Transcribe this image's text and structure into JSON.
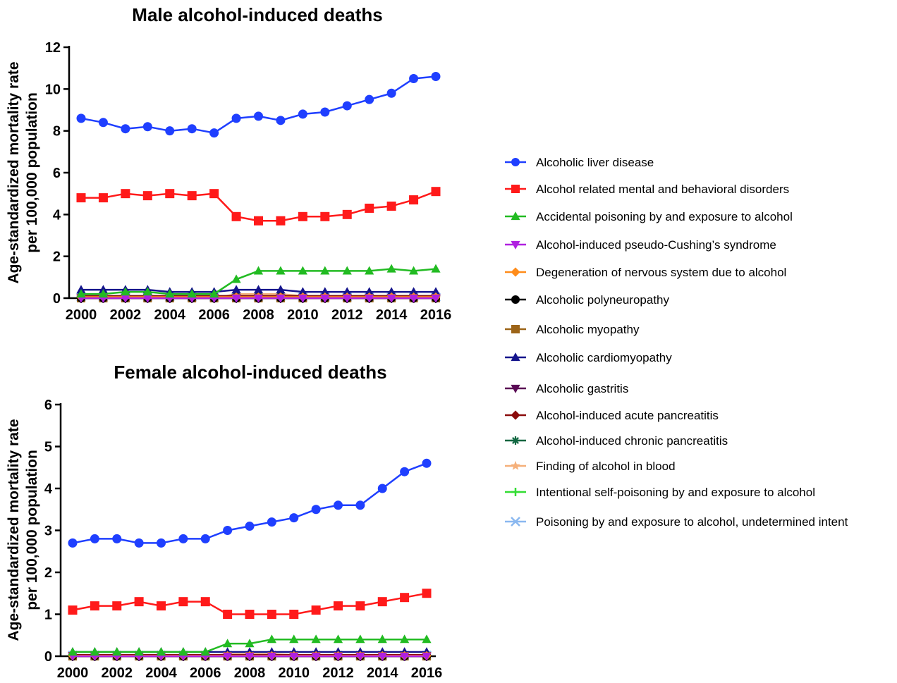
{
  "chart_data": [
    {
      "type": "line",
      "title": "Male alcohol-induced deaths",
      "xlabel": "",
      "ylabel": [
        "Age-standardized mortality rate",
        "per 100,000 population"
      ],
      "ylim": [
        0,
        12
      ],
      "yticks": [
        0,
        2,
        4,
        6,
        8,
        10,
        12
      ],
      "xticks": [
        2000,
        2002,
        2004,
        2006,
        2008,
        2010,
        2012,
        2014,
        2016
      ],
      "x": [
        2000,
        2001,
        2002,
        2003,
        2004,
        2005,
        2006,
        2007,
        2008,
        2009,
        2010,
        2011,
        2012,
        2013,
        2014,
        2015,
        2016
      ],
      "series": [
        {
          "name": "Alcoholic liver disease",
          "values": [
            8.6,
            8.4,
            8.1,
            8.2,
            8.0,
            8.1,
            7.9,
            8.6,
            8.7,
            8.5,
            8.8,
            8.9,
            9.2,
            9.5,
            9.8,
            10.5,
            10.6
          ]
        },
        {
          "name": "Alcohol related mental and behavioral disorders",
          "values": [
            4.8,
            4.8,
            5.0,
            4.9,
            5.0,
            4.9,
            5.0,
            3.9,
            3.7,
            3.7,
            3.9,
            3.9,
            4.0,
            4.3,
            4.4,
            4.7,
            5.1
          ]
        },
        {
          "name": "Accidental poisoning by and exposure to alcohol",
          "values": [
            0.2,
            0.2,
            0.3,
            0.3,
            0.2,
            0.2,
            0.2,
            0.9,
            1.3,
            1.3,
            1.3,
            1.3,
            1.3,
            1.3,
            1.4,
            1.3,
            1.4
          ]
        },
        {
          "name": "Alcohol-induced pseudo-Cushing’s syndrome",
          "values": [
            0,
            0,
            0,
            0,
            0,
            0,
            0,
            0,
            0,
            0,
            0,
            0,
            0,
            0,
            0,
            0,
            0
          ]
        },
        {
          "name": "Degeneration of nervous system due to alcohol",
          "values": [
            0.05,
            0.05,
            0.05,
            0.05,
            0.05,
            0.05,
            0.05,
            0.05,
            0.05,
            0.05,
            0.05,
            0.05,
            0.05,
            0.05,
            0.05,
            0.05,
            0.05
          ]
        },
        {
          "name": "Alcoholic polyneuropathy",
          "values": [
            0,
            0,
            0,
            0,
            0,
            0,
            0,
            0,
            0,
            0,
            0,
            0,
            0,
            0,
            0,
            0,
            0
          ]
        },
        {
          "name": "Alcoholic myopathy",
          "values": [
            0,
            0,
            0,
            0,
            0,
            0,
            0,
            0,
            0,
            0,
            0,
            0,
            0,
            0,
            0,
            0,
            0
          ]
        },
        {
          "name": "Alcoholic cardiomyopathy",
          "values": [
            0.4,
            0.4,
            0.4,
            0.4,
            0.3,
            0.3,
            0.3,
            0.4,
            0.4,
            0.4,
            0.3,
            0.3,
            0.3,
            0.3,
            0.3,
            0.3,
            0.3
          ]
        },
        {
          "name": "Alcoholic gastritis",
          "values": [
            0.02,
            0.02,
            0.02,
            0.02,
            0.02,
            0.02,
            0.02,
            0.02,
            0.02,
            0.02,
            0.02,
            0.02,
            0.02,
            0.02,
            0.02,
            0.02,
            0.02
          ]
        },
        {
          "name": "Alcohol-induced acute pancreatitis",
          "values": [
            0.1,
            0.1,
            0.1,
            0.1,
            0.1,
            0.1,
            0.1,
            0.1,
            0.1,
            0.1,
            0.1,
            0.1,
            0.1,
            0.1,
            0.1,
            0.1,
            0.1
          ]
        },
        {
          "name": "Alcohol-induced chronic pancreatitis",
          "values": [
            0.1,
            0.1,
            0.1,
            0.1,
            0.1,
            0.1,
            0.1,
            0.1,
            0.1,
            0.1,
            0.1,
            0.1,
            0.1,
            0.1,
            0.1,
            0.1,
            0.1
          ]
        },
        {
          "name": "Finding of alcohol in blood",
          "values": [
            0,
            0,
            0,
            0,
            0,
            0,
            0,
            0.2,
            0.2,
            0.2,
            0.1,
            0.1,
            0.1,
            0.1,
            0.1,
            0.1,
            0.1
          ]
        },
        {
          "name": "Intentional self-poisoning by and exposure to alcohol",
          "values": [
            0.02,
            0.02,
            0.02,
            0.02,
            0.02,
            0.02,
            0.02,
            0.02,
            0.02,
            0.02,
            0.02,
            0.02,
            0.02,
            0.02,
            0.02,
            0.02,
            0.02
          ]
        },
        {
          "name": "Poisoning by and exposure to alcohol, undetermined intent",
          "values": [
            0.05,
            0.05,
            0.05,
            0.05,
            0.05,
            0.05,
            0.05,
            0.05,
            0.05,
            0.05,
            0.05,
            0.05,
            0.05,
            0.05,
            0.05,
            0.05,
            0.05
          ]
        }
      ]
    },
    {
      "type": "line",
      "title": "Female alcohol-induced deaths",
      "xlabel": "",
      "ylabel": [
        "Age-standardized mortality rate",
        "per 100,000 population"
      ],
      "ylim": [
        0,
        6
      ],
      "yticks": [
        0,
        1,
        2,
        3,
        4,
        5,
        6
      ],
      "xticks": [
        2000,
        2002,
        2004,
        2006,
        2008,
        2010,
        2012,
        2014,
        2016
      ],
      "x": [
        2000,
        2001,
        2002,
        2003,
        2004,
        2005,
        2006,
        2007,
        2008,
        2009,
        2010,
        2011,
        2012,
        2013,
        2014,
        2015,
        2016
      ],
      "series": [
        {
          "name": "Alcoholic liver disease",
          "values": [
            2.7,
            2.8,
            2.8,
            2.7,
            2.7,
            2.8,
            2.8,
            3.0,
            3.1,
            3.2,
            3.3,
            3.5,
            3.6,
            3.6,
            4.0,
            4.4,
            4.6
          ]
        },
        {
          "name": "Alcohol related mental and behavioral disorders",
          "values": [
            1.1,
            1.2,
            1.2,
            1.3,
            1.2,
            1.3,
            1.3,
            1.0,
            1.0,
            1.0,
            1.0,
            1.1,
            1.2,
            1.2,
            1.3,
            1.4,
            1.5
          ]
        },
        {
          "name": "Accidental poisoning by and exposure to alcohol",
          "values": [
            0.1,
            0.1,
            0.1,
            0.1,
            0.1,
            0.1,
            0.1,
            0.3,
            0.3,
            0.4,
            0.4,
            0.4,
            0.4,
            0.4,
            0.4,
            0.4,
            0.4
          ]
        },
        {
          "name": "Alcohol-induced pseudo-Cushing’s syndrome",
          "values": [
            0,
            0,
            0,
            0,
            0,
            0,
            0,
            0,
            0,
            0,
            0,
            0,
            0,
            0,
            0,
            0,
            0
          ]
        },
        {
          "name": "Degeneration of nervous system due to alcohol",
          "values": [
            0.01,
            0.01,
            0.01,
            0.01,
            0.01,
            0.01,
            0.01,
            0.01,
            0.01,
            0.01,
            0.01,
            0.01,
            0.01,
            0.01,
            0.01,
            0.01,
            0.01
          ]
        },
        {
          "name": "Alcoholic polyneuropathy",
          "values": [
            0,
            0,
            0,
            0,
            0,
            0,
            0,
            0,
            0,
            0,
            0,
            0,
            0,
            0,
            0,
            0,
            0
          ]
        },
        {
          "name": "Alcoholic myopathy",
          "values": [
            0,
            0,
            0,
            0,
            0,
            0,
            0,
            0,
            0,
            0,
            0,
            0,
            0,
            0,
            0,
            0,
            0
          ]
        },
        {
          "name": "Alcoholic cardiomyopathy",
          "values": [
            0.1,
            0.1,
            0.1,
            0.1,
            0.1,
            0.1,
            0.1,
            0.1,
            0.1,
            0.1,
            0.1,
            0.1,
            0.1,
            0.1,
            0.1,
            0.1,
            0.1
          ]
        },
        {
          "name": "Alcoholic gastritis",
          "values": [
            0.01,
            0.01,
            0.01,
            0.01,
            0.01,
            0.01,
            0.01,
            0.01,
            0.01,
            0.01,
            0.01,
            0.01,
            0.01,
            0.01,
            0.01,
            0.01,
            0.01
          ]
        },
        {
          "name": "Alcohol-induced acute pancreatitis",
          "values": [
            0.03,
            0.03,
            0.03,
            0.03,
            0.03,
            0.03,
            0.03,
            0.03,
            0.03,
            0.03,
            0.03,
            0.03,
            0.03,
            0.03,
            0.03,
            0.03,
            0.03
          ]
        },
        {
          "name": "Alcohol-induced chronic pancreatitis",
          "values": [
            0.03,
            0.03,
            0.03,
            0.03,
            0.03,
            0.03,
            0.03,
            0.03,
            0.03,
            0.03,
            0.03,
            0.03,
            0.03,
            0.03,
            0.03,
            0.03,
            0.03
          ]
        },
        {
          "name": "Finding of alcohol in blood",
          "values": [
            0,
            0,
            0,
            0,
            0,
            0,
            0,
            0.05,
            0.05,
            0.05,
            0.03,
            0.03,
            0.03,
            0.03,
            0.03,
            0.03,
            0.03
          ]
        },
        {
          "name": "Intentional self-poisoning by and exposure to alcohol",
          "values": [
            0.01,
            0.01,
            0.01,
            0.01,
            0.01,
            0.01,
            0.01,
            0.01,
            0.01,
            0.01,
            0.01,
            0.01,
            0.01,
            0.01,
            0.01,
            0.01,
            0.01
          ]
        },
        {
          "name": "Poisoning by and exposure to alcohol, undetermined intent",
          "values": [
            0.02,
            0.02,
            0.02,
            0.02,
            0.02,
            0.02,
            0.02,
            0.02,
            0.02,
            0.02,
            0.02,
            0.02,
            0.02,
            0.02,
            0.02,
            0.02,
            0.02
          ]
        }
      ]
    }
  ],
  "legend": {
    "placement": "right",
    "entries": [
      {
        "label": "Alcoholic liver disease",
        "color": "#1f3fff",
        "marker": "circle"
      },
      {
        "label": "Alcohol related mental and behavioral disorders",
        "color": "#ff1a1a",
        "marker": "square"
      },
      {
        "label": "Accidental poisoning by and exposure to alcohol",
        "color": "#22bb22",
        "marker": "triangle-up"
      },
      {
        "label": "Alcohol-induced pseudo-Cushing’s syndrome",
        "color": "#b020e0",
        "marker": "triangle-down"
      },
      {
        "label": "Degeneration of nervous system due to alcohol",
        "color": "#ff8c1a",
        "marker": "diamond"
      },
      {
        "label": "Alcoholic polyneuropathy",
        "color": "#000000",
        "marker": "circle"
      },
      {
        "label": "Alcoholic myopathy",
        "color": "#9c6418",
        "marker": "square"
      },
      {
        "label": "Alcoholic cardiomyopathy",
        "color": "#14148c",
        "marker": "triangle-up"
      },
      {
        "label": "Alcoholic gastritis",
        "color": "#5a0a55",
        "marker": "triangle-down"
      },
      {
        "label": "Alcohol-induced acute pancreatitis",
        "color": "#8b0c0c",
        "marker": "diamond"
      },
      {
        "label": "Alcohol-induced chronic pancreatitis",
        "color": "#0f6640",
        "marker": "asterisk"
      },
      {
        "label": "Finding of alcohol in blood",
        "color": "#f5b07a",
        "marker": "star"
      },
      {
        "label": "Intentional self-poisoning by and exposure to alcohol",
        "color": "#33dd33",
        "marker": "plus"
      },
      {
        "label": "Poisoning by and exposure to alcohol, undetermined intent",
        "color": "#8ab8f0",
        "marker": "x"
      }
    ]
  }
}
